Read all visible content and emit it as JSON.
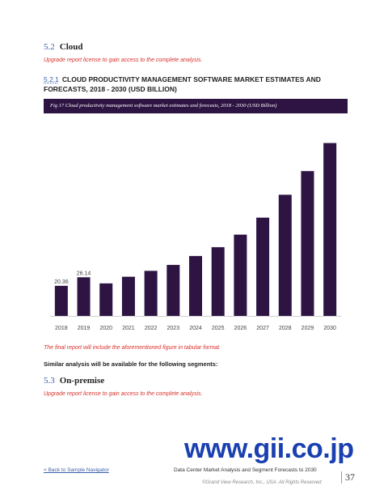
{
  "section_cloud": {
    "number": "5.2",
    "title": "Cloud"
  },
  "upgrade_text": "Upgrade report license to gain access to the complete analysis.",
  "subsection": {
    "number": "5.2.1",
    "title": "CLOUD PRODUCTIVITY MANAGEMENT SOFTWARE MARKET ESTIMATES AND FORECASTS, 2018 - 2030 (USD BILLION)"
  },
  "figure_caption": "Fig 17  Cloud productivity management software market estimates and forecasts, 2018 - 2030 (USD Billion)",
  "chart_data": {
    "type": "bar",
    "categories": [
      "2018",
      "2019",
      "2020",
      "2021",
      "2022",
      "2023",
      "2024",
      "2025",
      "2026",
      "2027",
      "2028",
      "2029",
      "2030"
    ],
    "values": [
      20.36,
      26.14,
      22.0,
      26.5,
      30.5,
      34.5,
      40.5,
      46.5,
      55.0,
      66.5,
      82.0,
      98.0,
      117.0
    ],
    "data_labels": [
      "20.36",
      "26.14",
      "",
      "",
      "",
      "",
      "",
      "",
      "",
      "",
      "",
      "",
      ""
    ],
    "title": "",
    "xlabel": "",
    "ylabel": "",
    "ylim": [
      0,
      125
    ],
    "bar_color": "#2d1443"
  },
  "note_text": "The final report will include the aforementioned figure in tabular format.",
  "similar_text": "Similar analysis will be available for the following segments:",
  "section_onprem": {
    "number": "5.3",
    "title": "On-premise"
  },
  "watermark": "www.gii.co.jp",
  "footer": {
    "back_link": "< Back to Sample Navigator",
    "title": "Data Center Market Analysis and Segment Forecasts to 2030",
    "copyright": "©Grand View Research, Inc., USA. All Rights Reserved",
    "page": "37"
  }
}
